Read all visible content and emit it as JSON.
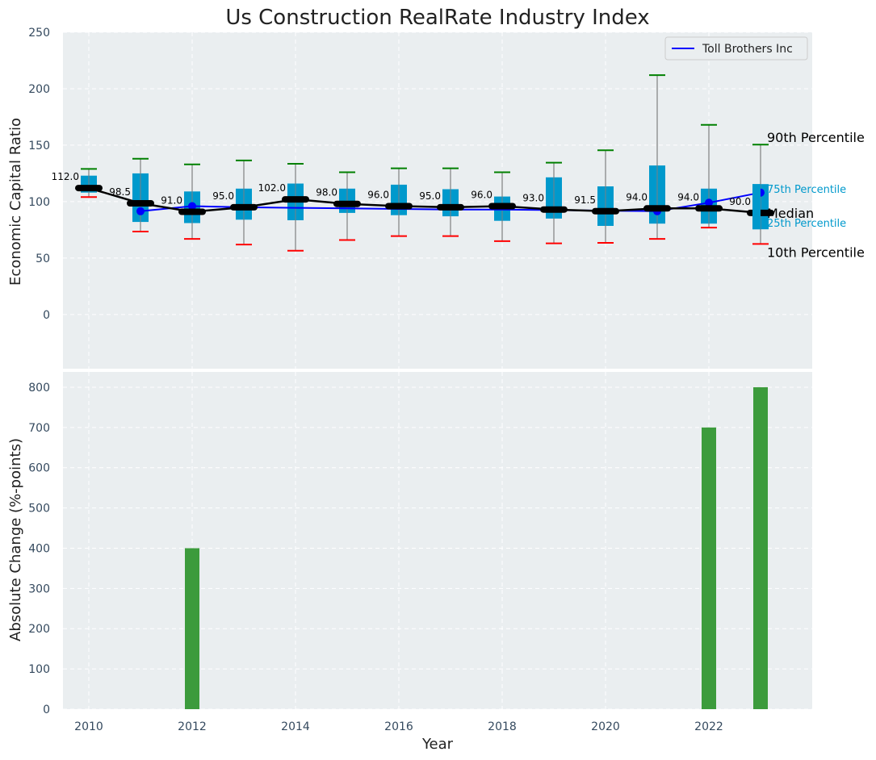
{
  "chart_data": [
    {
      "type": "box",
      "title": "Us Construction RealRate Industry Index",
      "xlabel": "",
      "ylabel": "Economic Capital Ratio",
      "ylim": [
        -48,
        250
      ],
      "xlim": [
        2009.5,
        2024.0
      ],
      "yticks": [
        0,
        50,
        100,
        150,
        200,
        250
      ],
      "grid": true,
      "legend": {
        "position": "top-right",
        "entries": [
          "Toll Brothers Inc"
        ]
      },
      "categories": [
        2010,
        2011,
        2012,
        2013,
        2014,
        2015,
        2016,
        2017,
        2018,
        2019,
        2020,
        2021,
        2022,
        2023
      ],
      "p10": [
        104,
        73.5,
        67,
        62,
        56.5,
        66,
        69.5,
        69.5,
        65,
        63,
        63.5,
        67,
        77,
        62.5
      ],
      "p25": [
        108,
        82,
        81,
        84,
        83.5,
        90,
        88,
        87,
        83,
        85,
        78.5,
        80.5,
        80.5,
        75.5
      ],
      "median": [
        112.0,
        98.5,
        91.0,
        95.0,
        102.0,
        98.0,
        96.0,
        95.0,
        96.0,
        93.0,
        91.5,
        94.0,
        94.0,
        90.0
      ],
      "p75": [
        123,
        125,
        109,
        111.5,
        116,
        111.5,
        115,
        111,
        104.5,
        121.5,
        113.5,
        132,
        111.5,
        115.5
      ],
      "p90": [
        129,
        138,
        133,
        136.5,
        133.5,
        126,
        129.5,
        129.5,
        126,
        134.5,
        145.5,
        212,
        168,
        150.5
      ],
      "median_labels": [
        "112.0",
        "98.5",
        "91.0",
        "95.0",
        "102.0",
        "98.0",
        "96.0",
        "95.0",
        "96.0",
        "93.0",
        "91.5",
        "94.0",
        "94.0",
        "90.0"
      ],
      "series": [
        {
          "name": "Toll Brothers Inc",
          "color": "#0000ff",
          "x": [
            2011,
            2012,
            2013,
            2014,
            2015,
            2016,
            2017,
            2018,
            2019,
            2020,
            2021,
            2022,
            2023
          ],
          "values": [
            91.5,
            96,
            95,
            94.5,
            94,
            93.5,
            93,
            93,
            92.5,
            92,
            91.5,
            99,
            108
          ],
          "marked_points": [
            2011,
            2012,
            2021,
            2022,
            2023
          ]
        }
      ],
      "annotations": [
        "90th Percentile",
        "75th Percentile",
        "Median",
        "25th Percentile",
        "10th Percentile"
      ],
      "colors": {
        "box": "#0099cc",
        "p90_cap": "#008000",
        "p10_cap": "#ff0000",
        "median_line": "#000000",
        "whisker": "#808080",
        "background": "#eaeef0"
      }
    },
    {
      "type": "bar",
      "xlabel": "Year",
      "ylabel": "Absolute Change (%-points)",
      "ylim": [
        0,
        838
      ],
      "xlim": [
        2009.5,
        2024.0
      ],
      "yticks": [
        0,
        100,
        200,
        300,
        400,
        500,
        600,
        700,
        800
      ],
      "xticks": [
        2010,
        2012,
        2014,
        2016,
        2018,
        2020,
        2022
      ],
      "grid": true,
      "categories": [
        2012,
        2022,
        2023
      ],
      "values": [
        400,
        700,
        800
      ],
      "colors": {
        "bar": "#3c9b3c",
        "background": "#eaeef0"
      }
    }
  ]
}
